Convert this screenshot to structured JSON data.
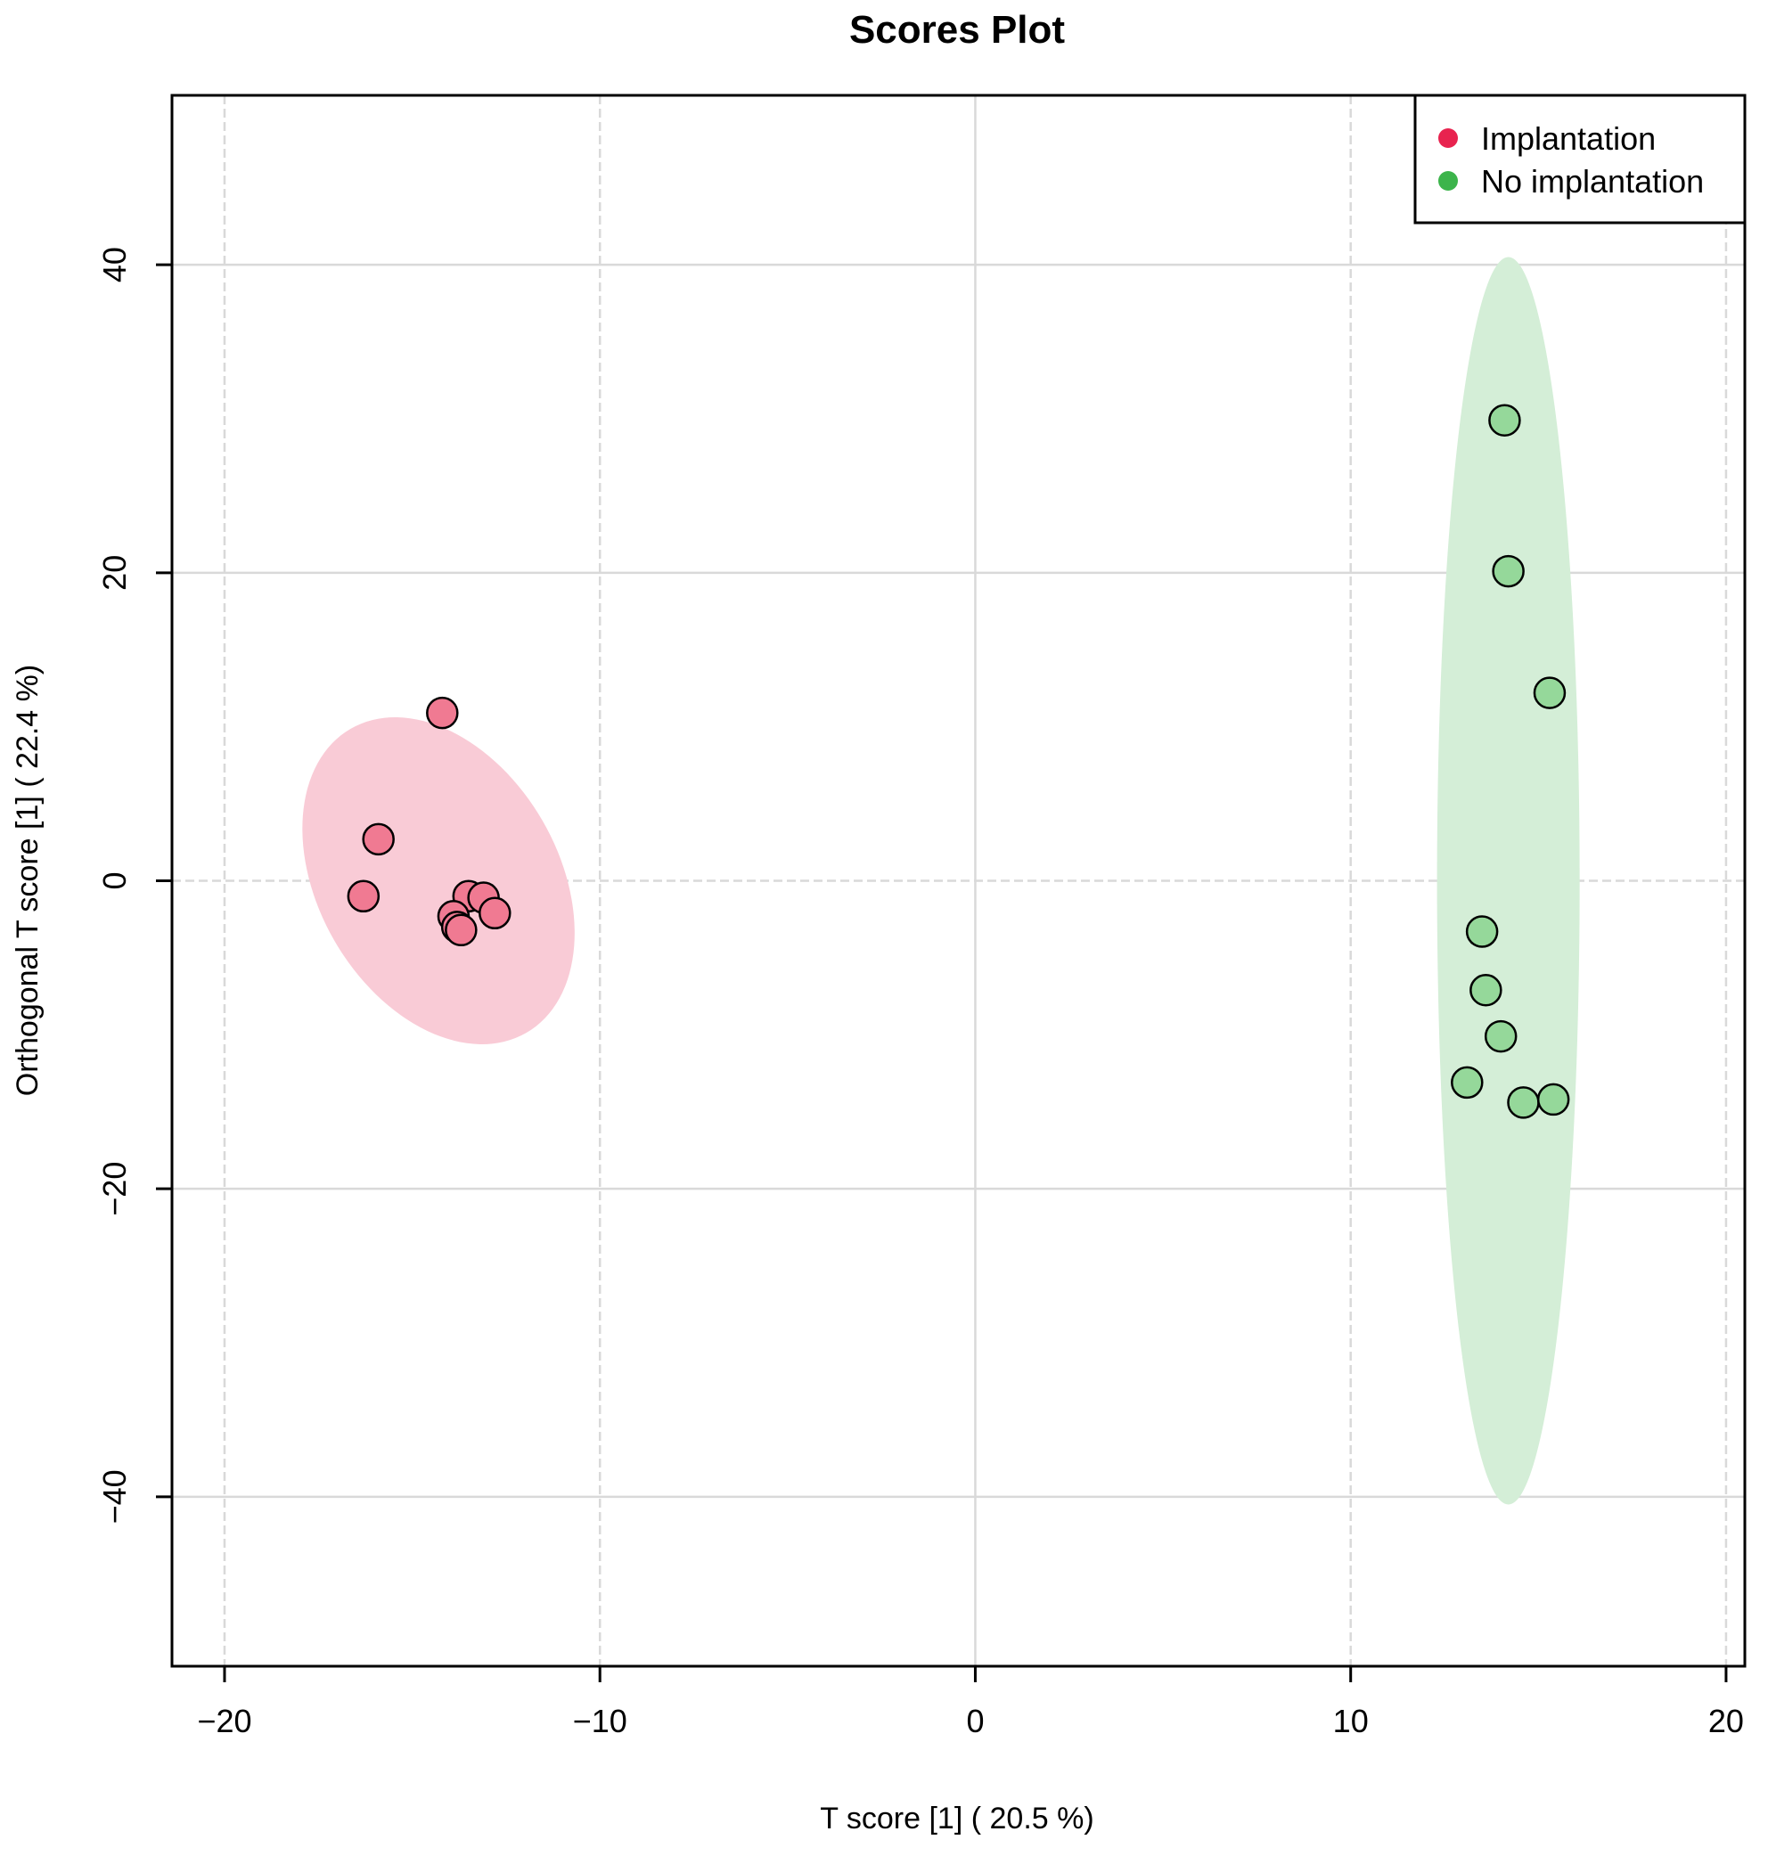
{
  "chart_data": {
    "type": "scatter",
    "title": "Scores Plot",
    "xlabel": "T score [1] ( 20.5 %)",
    "ylabel": "Orthogonal T score [1] ( 22.4 %)",
    "xlim": [
      -21.4,
      20.5
    ],
    "ylim": [
      -51,
      51
    ],
    "x_ticks": [
      -20,
      -10,
      0,
      10,
      20
    ],
    "y_ticks": [
      -40,
      -20,
      0,
      20,
      40
    ],
    "x_tick_labels": [
      "−20",
      "−10",
      "0",
      "10",
      "20"
    ],
    "y_tick_labels": [
      "−40",
      "−20",
      "0",
      "20",
      "40"
    ],
    "grid": true,
    "legend_position": "top-right",
    "series": [
      {
        "name": "Implantation",
        "color": "#e8234f",
        "point_fill": "#f07a92",
        "ellipse_fill": "#f9cbd6",
        "ellipse": {
          "cx": -14.3,
          "cy": 0,
          "rx": 3.2,
          "ry": 11.4,
          "angle_deg": -30
        },
        "points": [
          {
            "x": -14.2,
            "y": 10.9
          },
          {
            "x": -15.9,
            "y": 2.7
          },
          {
            "x": -16.3,
            "y": -1.0
          },
          {
            "x": -13.5,
            "y": -1.0
          },
          {
            "x": -13.1,
            "y": -1.1
          },
          {
            "x": -12.8,
            "y": -2.1
          },
          {
            "x": -13.9,
            "y": -2.3
          },
          {
            "x": -13.8,
            "y": -3.0
          },
          {
            "x": -13.7,
            "y": -3.2
          }
        ]
      },
      {
        "name": "No implantation",
        "color": "#3cb44b",
        "point_fill": "#95d89a",
        "ellipse_fill": "#d4eed7",
        "ellipse": {
          "cx": 14.2,
          "cy": 0,
          "rx": 1.9,
          "ry": 40.5,
          "angle_deg": 0
        },
        "points": [
          {
            "x": 14.1,
            "y": 29.9
          },
          {
            "x": 14.2,
            "y": 20.1
          },
          {
            "x": 15.3,
            "y": 12.2
          },
          {
            "x": 13.5,
            "y": -3.3
          },
          {
            "x": 13.6,
            "y": -7.1
          },
          {
            "x": 14.0,
            "y": -10.1
          },
          {
            "x": 13.1,
            "y": -13.1
          },
          {
            "x": 14.6,
            "y": -14.4
          },
          {
            "x": 15.4,
            "y": -14.2
          }
        ]
      }
    ]
  }
}
